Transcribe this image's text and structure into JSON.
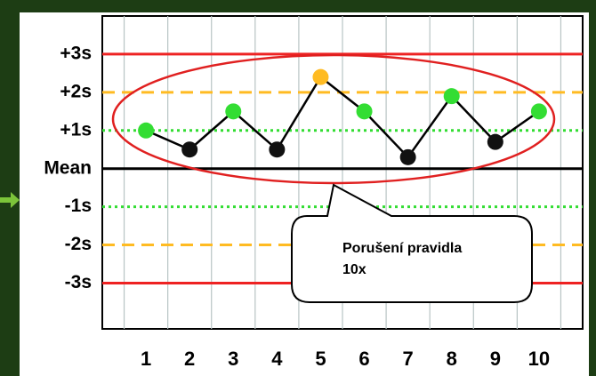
{
  "chart_data": {
    "type": "line",
    "x": [
      1,
      2,
      3,
      4,
      5,
      6,
      7,
      8,
      9,
      10
    ],
    "series": [
      {
        "color": "#000000",
        "values": [
          1.0,
          0.5,
          1.5,
          0.5,
          2.4,
          1.5,
          0.3,
          1.9,
          0.7,
          1.5
        ]
      }
    ],
    "point_colors": [
      "#33dd33",
      "#111111",
      "#33dd33",
      "#111111",
      "#ffbb22",
      "#33dd33",
      "#111111",
      "#33dd33",
      "#111111",
      "#33dd33"
    ],
    "xlim": [
      0,
      11
    ],
    "xticks": [
      1,
      2,
      3,
      4,
      5,
      6,
      7,
      8,
      9,
      10
    ],
    "ylim": [
      -4.2,
      4
    ],
    "yticks": [
      {
        "value": 3,
        "label": "+3s"
      },
      {
        "value": 2,
        "label": "+2s"
      },
      {
        "value": 1,
        "label": "+1s"
      },
      {
        "value": 0,
        "label": "Mean"
      },
      {
        "value": -1,
        "label": "-1s"
      },
      {
        "value": -2,
        "label": "-2s"
      },
      {
        "value": -3,
        "label": "-3s"
      }
    ],
    "yline_colors": [
      "#ee2222",
      "#ffbb22",
      "#33dd33",
      "#000000",
      "#33dd33",
      "#ffbb22",
      "#ee2222"
    ],
    "yline_dashes": [
      "none",
      "14 8",
      "3 4",
      "none",
      "3 4",
      "14 8",
      "none"
    ],
    "annotation": "Porušení pravidla 10x"
  }
}
